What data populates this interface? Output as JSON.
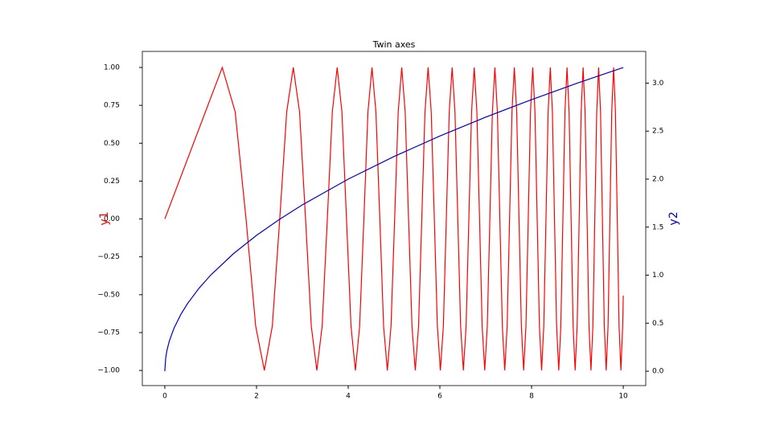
{
  "chart_data": {
    "type": "line",
    "title": "Twin axes",
    "ylabel": "y1",
    "y2label": "y2",
    "ylabel_color": "#ff0000",
    "y2label_color": "#0000cc",
    "xlim": [
      -0.49,
      10.49
    ],
    "xticks": [
      0,
      2,
      4,
      6,
      8,
      10
    ],
    "ylim": [
      -1.1,
      1.106
    ],
    "yticks": [
      {
        "value": -1,
        "label": "−1.00"
      },
      {
        "value": -0.75,
        "label": "−0.75"
      },
      {
        "value": -0.5,
        "label": "−0.50"
      },
      {
        "value": -0.25,
        "label": "−0.25"
      },
      {
        "value": 0,
        "label": "0.00"
      },
      {
        "value": 0.25,
        "label": "0.25"
      },
      {
        "value": 0.5,
        "label": "0.50"
      },
      {
        "value": 0.75,
        "label": "0.75"
      },
      {
        "value": 1,
        "label": "1.00"
      }
    ],
    "y2lim": [
      -0.15,
      3.33
    ],
    "y2ticks": [
      {
        "value": 0,
        "label": "0.0"
      },
      {
        "value": 0.5,
        "label": "0.5"
      },
      {
        "value": 1,
        "label": "1.0"
      },
      {
        "value": 1.5,
        "label": "1.5"
      },
      {
        "value": 2,
        "label": "2.0"
      },
      {
        "value": 2.5,
        "label": "2.5"
      },
      {
        "value": 3,
        "label": "3.0"
      }
    ],
    "series": [
      {
        "color": "#ff0000",
        "axis": "y",
        "x": [
          0,
          0.886,
          1.253,
          1.535,
          1.772,
          1.982,
          2.171,
          2.345,
          2.507,
          2.659,
          2.802,
          2.939,
          3.07,
          3.195,
          3.316,
          3.432,
          3.545,
          3.654,
          3.76,
          3.863,
          3.963,
          4.061,
          4.157,
          4.25,
          4.342,
          4.431,
          4.519,
          4.605,
          4.69,
          4.772,
          4.854,
          4.934,
          5.013,
          5.091,
          5.168,
          5.243,
          5.317,
          5.391,
          5.463,
          5.535,
          5.605,
          5.675,
          5.743,
          5.811,
          5.879,
          5.945,
          6.011,
          6.076,
          6.14,
          6.204,
          6.267,
          6.329,
          6.391,
          6.452,
          6.512,
          6.572,
          6.632,
          6.691,
          6.749,
          6.807,
          6.865,
          6.922,
          6.978,
          7.034,
          7.09,
          7.145,
          7.2,
          7.254,
          7.308,
          7.362,
          7.415,
          7.467,
          7.52,
          7.572,
          7.624,
          7.675,
          7.726,
          7.777,
          7.827,
          7.877,
          7.927,
          7.976,
          8.025,
          8.074,
          8.122,
          8.171,
          8.219,
          8.266,
          8.314,
          8.361,
          8.408,
          8.454,
          8.5,
          8.546,
          8.592,
          8.638,
          8.683,
          8.728,
          8.773,
          8.818,
          8.862,
          8.906,
          8.95,
          8.994,
          9.038,
          9.081,
          9.124,
          9.167,
          9.21,
          9.252,
          9.295,
          9.337,
          9.379,
          9.421,
          9.462,
          9.504,
          9.545,
          9.586,
          9.627,
          9.668,
          9.708,
          9.748,
          9.789,
          9.829,
          9.869,
          9.908,
          9.948,
          9.987,
          10
        ],
        "values": [
          0,
          0.707,
          1,
          0.707,
          0,
          -0.707,
          -1,
          -0.707,
          0,
          0.707,
          1,
          0.707,
          0,
          -0.707,
          -1,
          -0.707,
          0,
          0.707,
          1,
          0.707,
          0,
          -0.707,
          -1,
          -0.707,
          0,
          0.707,
          1,
          0.707,
          0,
          -0.707,
          -1,
          -0.707,
          0,
          0.707,
          1,
          0.707,
          0,
          -0.707,
          -1,
          -0.707,
          0,
          0.707,
          1,
          0.707,
          0,
          -0.707,
          -1,
          -0.707,
          0,
          0.707,
          1,
          0.707,
          0,
          -0.707,
          -1,
          -0.707,
          0,
          0.707,
          1,
          0.707,
          0,
          -0.707,
          -1,
          -0.707,
          0,
          0.707,
          1,
          0.707,
          0,
          -0.707,
          -1,
          -0.707,
          0,
          0.707,
          1,
          0.707,
          0,
          -0.707,
          -1,
          -0.707,
          0,
          0.707,
          1,
          0.707,
          0,
          -0.707,
          -1,
          -0.707,
          0,
          0.707,
          1,
          0.707,
          0,
          -0.707,
          -1,
          -0.707,
          0,
          0.707,
          1,
          0.707,
          0,
          -0.707,
          -1,
          -0.707,
          0,
          0.707,
          1,
          0.707,
          0,
          -0.707,
          -1,
          -0.707,
          0,
          0.707,
          1,
          0.707,
          0,
          -0.707,
          -1,
          -0.707,
          0,
          0.707,
          1,
          0.707,
          0,
          -0.707,
          -1,
          -0.707,
          -0.506
        ]
      },
      {
        "color": "#0000cc",
        "axis": "y2",
        "x": [
          0,
          0.02,
          0.05,
          0.1,
          0.2,
          0.35,
          0.5,
          0.75,
          1,
          1.5,
          2,
          2.5,
          3,
          4,
          5,
          6,
          7,
          8,
          9,
          10
        ],
        "values": [
          0,
          0.141,
          0.224,
          0.316,
          0.447,
          0.592,
          0.707,
          0.866,
          1,
          1.225,
          1.414,
          1.581,
          1.732,
          2,
          2.236,
          2.449,
          2.646,
          2.828,
          3,
          3.162
        ]
      }
    ]
  }
}
